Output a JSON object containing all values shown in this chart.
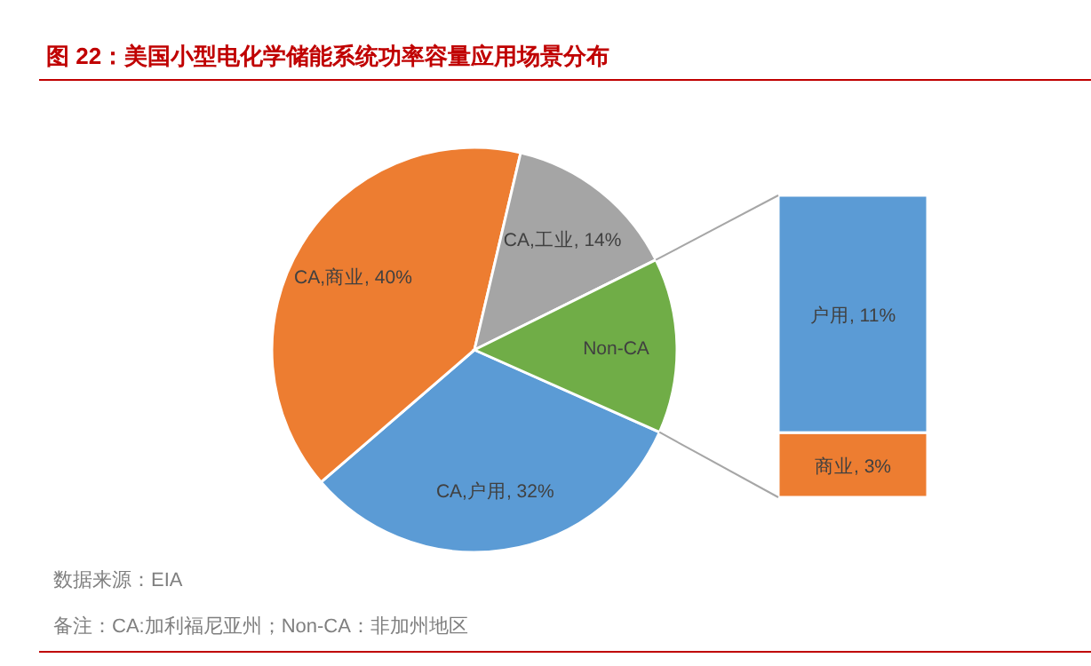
{
  "chart_data": [
    {
      "type": "pie",
      "title": "图 22：美国小型电化学储能系统功率容量应用场景分布",
      "categories": [
        "CA,户用",
        "CA,商业",
        "CA,工业",
        "Non-CA"
      ],
      "values": [
        32,
        40,
        14,
        14
      ],
      "colors": [
        "#5b9bd5",
        "#ed7d31",
        "#a5a5a5",
        "#70ad47"
      ],
      "value_labels": [
        "32%",
        "40%",
        "14%",
        null
      ],
      "legend": false,
      "annotations": [
        "数据来源：EIA",
        "备注：CA:加利福尼亚州；Non-CA：非加州地区"
      ]
    },
    {
      "type": "bar",
      "stacked": true,
      "categories": [
        null
      ],
      "legend": false,
      "series": [
        {
          "color": "#ed7d31",
          "values": [
            3
          ],
          "value_labels": [
            "商业, 3%"
          ]
        },
        {
          "color": "#5b9bd5",
          "values": [
            11
          ],
          "value_labels": [
            "户用, 11%"
          ]
        }
      ]
    }
  ]
}
